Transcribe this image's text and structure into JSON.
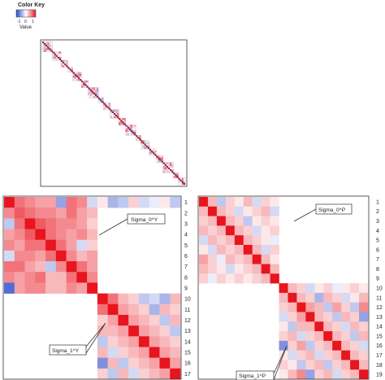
{
  "color_key": {
    "title": "Color Key",
    "ticks": [
      "-1",
      "0",
      "1"
    ],
    "label": "Value",
    "colors": {
      "low": "#2846c8",
      "mid": "#ffffff",
      "high": "#e8141e"
    }
  },
  "callouts": {
    "top_left": "Sigma_0^Y",
    "bottom_left": "Sigma_1^Y",
    "top_right": "Sigma_0^P",
    "bottom_right": "Sigma_1^P"
  },
  "chart_data": [
    {
      "type": "heatmap",
      "panel": "overview",
      "grid": false,
      "color_range": [
        -1,
        1
      ],
      "blocks": [
        6,
        5,
        4,
        3,
        5,
        4,
        6,
        3,
        4,
        5,
        4,
        6,
        3,
        5,
        4,
        4,
        6,
        3,
        4
      ]
    },
    {
      "type": "heatmap",
      "panel": "zoom-left",
      "row_labels": [
        "1",
        "2",
        "3",
        "4",
        "5",
        "6",
        "7",
        "8",
        "9",
        "10",
        "11",
        "12",
        "13",
        "14",
        "15",
        "16",
        "17"
      ],
      "color_range": [
        -1,
        1
      ],
      "values": [
        [
          1.0,
          0.6,
          0.5,
          0.4,
          0.4,
          -0.5,
          0.6,
          0.5,
          -0.2,
          0.1,
          -0.4,
          -0.3,
          0.2,
          -0.2,
          -0.1,
          0.1,
          -0.3
        ],
        [
          0.5,
          0.7,
          0.6,
          0.5,
          0.5,
          0.4,
          0.6,
          0.4,
          0.3,
          0.0,
          0.0,
          0.0,
          0.0,
          0.0,
          0.0,
          0.0,
          0.0
        ],
        [
          -0.3,
          0.6,
          1.0,
          0.7,
          0.6,
          0.5,
          0.5,
          0.4,
          0.2,
          0.0,
          0.0,
          0.0,
          0.0,
          0.0,
          0.0,
          0.0,
          0.0
        ],
        [
          0.4,
          0.5,
          0.7,
          1.0,
          0.6,
          0.5,
          0.4,
          0.5,
          0.3,
          0.0,
          0.0,
          0.0,
          0.0,
          0.0,
          0.0,
          0.0,
          0.0
        ],
        [
          0.5,
          0.4,
          0.6,
          0.6,
          1.0,
          0.6,
          0.4,
          -0.2,
          0.2,
          0.0,
          0.0,
          0.0,
          0.0,
          0.0,
          0.0,
          0.0,
          0.0
        ],
        [
          -0.2,
          0.5,
          0.5,
          0.4,
          0.6,
          1.0,
          0.5,
          0.3,
          0.4,
          0.0,
          0.0,
          0.0,
          0.0,
          0.0,
          0.0,
          0.0,
          0.0
        ],
        [
          0.6,
          0.6,
          0.4,
          0.3,
          -0.3,
          0.5,
          1.0,
          0.6,
          0.4,
          0.0,
          0.0,
          0.0,
          0.0,
          0.0,
          0.0,
          0.0,
          0.0
        ],
        [
          0.5,
          0.4,
          0.5,
          0.6,
          0.3,
          0.3,
          0.6,
          1.0,
          0.5,
          0.0,
          0.0,
          0.0,
          0.0,
          0.0,
          0.0,
          0.0,
          0.0
        ],
        [
          -0.8,
          0.4,
          0.5,
          0.5,
          0.3,
          0.3,
          0.5,
          0.4,
          1.0,
          0.0,
          0.0,
          0.0,
          0.0,
          0.0,
          0.0,
          0.0,
          0.0
        ],
        [
          0.0,
          0.0,
          0.0,
          0.0,
          0.0,
          0.0,
          0.0,
          0.0,
          0.0,
          1.0,
          0.6,
          0.3,
          0.2,
          -0.3,
          -0.2,
          -0.4,
          0.3
        ],
        [
          0.0,
          0.0,
          0.0,
          0.0,
          0.0,
          0.0,
          0.0,
          0.0,
          0.0,
          0.6,
          1.0,
          0.4,
          0.3,
          0.2,
          -0.4,
          0.3,
          0.2
        ],
        [
          0.0,
          0.0,
          0.0,
          0.0,
          0.0,
          0.0,
          0.0,
          0.0,
          0.0,
          0.2,
          0.4,
          1.0,
          0.4,
          0.3,
          0.2,
          -0.3,
          0.3
        ],
        [
          0.0,
          0.0,
          0.0,
          0.0,
          0.0,
          0.0,
          0.0,
          0.0,
          0.0,
          0.3,
          0.3,
          0.4,
          1.0,
          0.4,
          0.3,
          0.2,
          -0.3
        ],
        [
          0.0,
          0.0,
          0.0,
          0.0,
          0.0,
          0.0,
          0.0,
          0.0,
          0.0,
          -0.3,
          0.2,
          0.3,
          0.4,
          1.0,
          0.4,
          0.3,
          0.2
        ],
        [
          0.0,
          0.0,
          0.0,
          0.0,
          0.0,
          0.0,
          0.0,
          0.0,
          0.0,
          0.3,
          -0.2,
          0.2,
          0.3,
          0.4,
          1.0,
          0.4,
          0.3
        ],
        [
          0.0,
          0.0,
          0.0,
          0.0,
          0.0,
          0.0,
          0.0,
          0.0,
          0.0,
          -0.6,
          0.3,
          -0.3,
          0.2,
          0.3,
          0.4,
          1.0,
          0.4
        ],
        [
          0.0,
          0.0,
          0.0,
          0.0,
          0.0,
          0.0,
          0.0,
          0.0,
          0.0,
          0.2,
          -0.3,
          0.3,
          -0.2,
          0.2,
          0.3,
          0.4,
          1.0
        ]
      ]
    },
    {
      "type": "heatmap",
      "panel": "zoom-right",
      "row_labels": [
        "1",
        "2",
        "3",
        "4",
        "5",
        "6",
        "7",
        "8",
        "9",
        "10",
        "11",
        "12",
        "13",
        "14",
        "15",
        "16",
        "17",
        "18",
        "19"
      ],
      "color_range": [
        -1,
        1
      ],
      "values": [
        [
          1.0,
          0.3,
          -0.3,
          0.2,
          0.1,
          0.3,
          -0.2,
          0.2,
          0.1,
          0.0,
          0.0,
          0.0,
          0.0,
          0.0,
          0.0,
          0.0,
          0.0,
          0.0,
          0.0
        ],
        [
          0.3,
          1.0,
          0.3,
          0.2,
          -0.2,
          0.1,
          0.2,
          0.3,
          -0.2,
          0.0,
          0.0,
          0.0,
          0.0,
          0.0,
          0.0,
          0.0,
          0.0,
          0.0,
          0.0
        ],
        [
          0.2,
          0.3,
          1.0,
          0.3,
          0.2,
          -0.3,
          0.1,
          0.2,
          0.1,
          0.0,
          0.0,
          0.0,
          0.0,
          0.0,
          0.0,
          0.0,
          0.0,
          0.0,
          0.0
        ],
        [
          0.3,
          0.2,
          0.3,
          1.0,
          0.3,
          0.2,
          -0.2,
          0.1,
          0.2,
          0.0,
          0.0,
          0.0,
          0.0,
          0.0,
          0.0,
          0.0,
          0.0,
          0.0,
          0.0
        ],
        [
          -0.2,
          0.3,
          0.2,
          0.3,
          1.0,
          0.3,
          0.2,
          0.1,
          -0.1,
          0.0,
          0.0,
          0.0,
          0.0,
          0.0,
          0.0,
          0.0,
          0.0,
          0.0,
          0.0
        ],
        [
          0.1,
          -0.2,
          0.3,
          0.2,
          0.3,
          1.0,
          0.3,
          -0.2,
          0.2,
          0.0,
          0.0,
          0.0,
          0.0,
          0.0,
          0.0,
          0.0,
          0.0,
          0.0,
          0.0
        ],
        [
          0.4,
          0.2,
          -0.1,
          0.3,
          0.2,
          0.3,
          1.0,
          0.3,
          0.1,
          0.0,
          0.0,
          0.0,
          0.0,
          0.0,
          0.0,
          0.0,
          0.0,
          0.0,
          0.0
        ],
        [
          0.3,
          0.2,
          0.1,
          -0.2,
          0.1,
          0.2,
          0.3,
          1.0,
          0.3,
          0.0,
          0.0,
          0.0,
          0.0,
          0.0,
          0.0,
          0.0,
          0.0,
          0.0,
          0.0
        ],
        [
          0.2,
          -0.1,
          0.2,
          0.1,
          0.2,
          0.1,
          0.2,
          0.3,
          1.0,
          0.0,
          0.0,
          0.0,
          0.0,
          0.0,
          0.0,
          0.0,
          0.0,
          0.0,
          0.0
        ],
        [
          0.0,
          0.0,
          0.0,
          0.0,
          0.0,
          0.0,
          0.0,
          0.0,
          0.0,
          1.0,
          0.3,
          0.2,
          -0.2,
          0.1,
          0.2,
          -0.1,
          0.1,
          0.2,
          0.1
        ],
        [
          0.0,
          0.0,
          0.0,
          0.0,
          0.0,
          0.0,
          0.0,
          0.0,
          0.0,
          0.3,
          1.0,
          0.3,
          0.2,
          -0.4,
          0.3,
          0.2,
          -0.2,
          0.1,
          0.3
        ],
        [
          0.0,
          0.0,
          0.0,
          0.0,
          0.0,
          0.0,
          0.0,
          0.0,
          0.0,
          0.2,
          0.3,
          1.0,
          0.4,
          0.3,
          -0.3,
          0.4,
          0.2,
          -0.3,
          0.5
        ],
        [
          0.0,
          0.0,
          0.0,
          0.0,
          0.0,
          0.0,
          0.0,
          0.0,
          0.0,
          -0.2,
          0.2,
          0.4,
          1.0,
          0.3,
          0.2,
          -0.3,
          0.3,
          0.2,
          -0.5
        ],
        [
          0.0,
          0.0,
          0.0,
          0.0,
          0.0,
          0.0,
          0.0,
          0.0,
          0.0,
          0.1,
          -0.3,
          0.3,
          0.3,
          1.0,
          0.3,
          0.2,
          -0.2,
          0.3,
          0.2
        ],
        [
          0.0,
          0.0,
          0.0,
          0.0,
          0.0,
          0.0,
          0.0,
          0.0,
          0.0,
          0.2,
          0.3,
          -0.2,
          0.2,
          0.3,
          1.0,
          0.3,
          0.2,
          -0.3,
          0.3
        ],
        [
          0.0,
          0.0,
          0.0,
          0.0,
          0.0,
          0.0,
          0.0,
          0.0,
          0.0,
          -0.6,
          0.2,
          0.4,
          -0.3,
          0.2,
          0.3,
          1.0,
          0.3,
          0.2,
          -0.2
        ],
        [
          0.0,
          0.0,
          0.0,
          0.0,
          0.0,
          0.0,
          0.0,
          0.0,
          0.0,
          0.1,
          -0.2,
          0.2,
          0.3,
          -0.2,
          0.2,
          0.3,
          1.0,
          0.3,
          0.2
        ],
        [
          0.0,
          0.0,
          0.0,
          0.0,
          0.0,
          0.0,
          0.0,
          0.0,
          0.0,
          0.2,
          0.1,
          -0.3,
          0.2,
          0.3,
          -0.3,
          0.2,
          0.3,
          1.0,
          0.3
        ],
        [
          0.0,
          0.0,
          0.0,
          0.0,
          0.0,
          0.0,
          0.0,
          0.0,
          0.0,
          0.1,
          0.3,
          0.5,
          -0.5,
          0.2,
          0.3,
          -0.2,
          0.2,
          0.3,
          1.0
        ]
      ]
    }
  ]
}
